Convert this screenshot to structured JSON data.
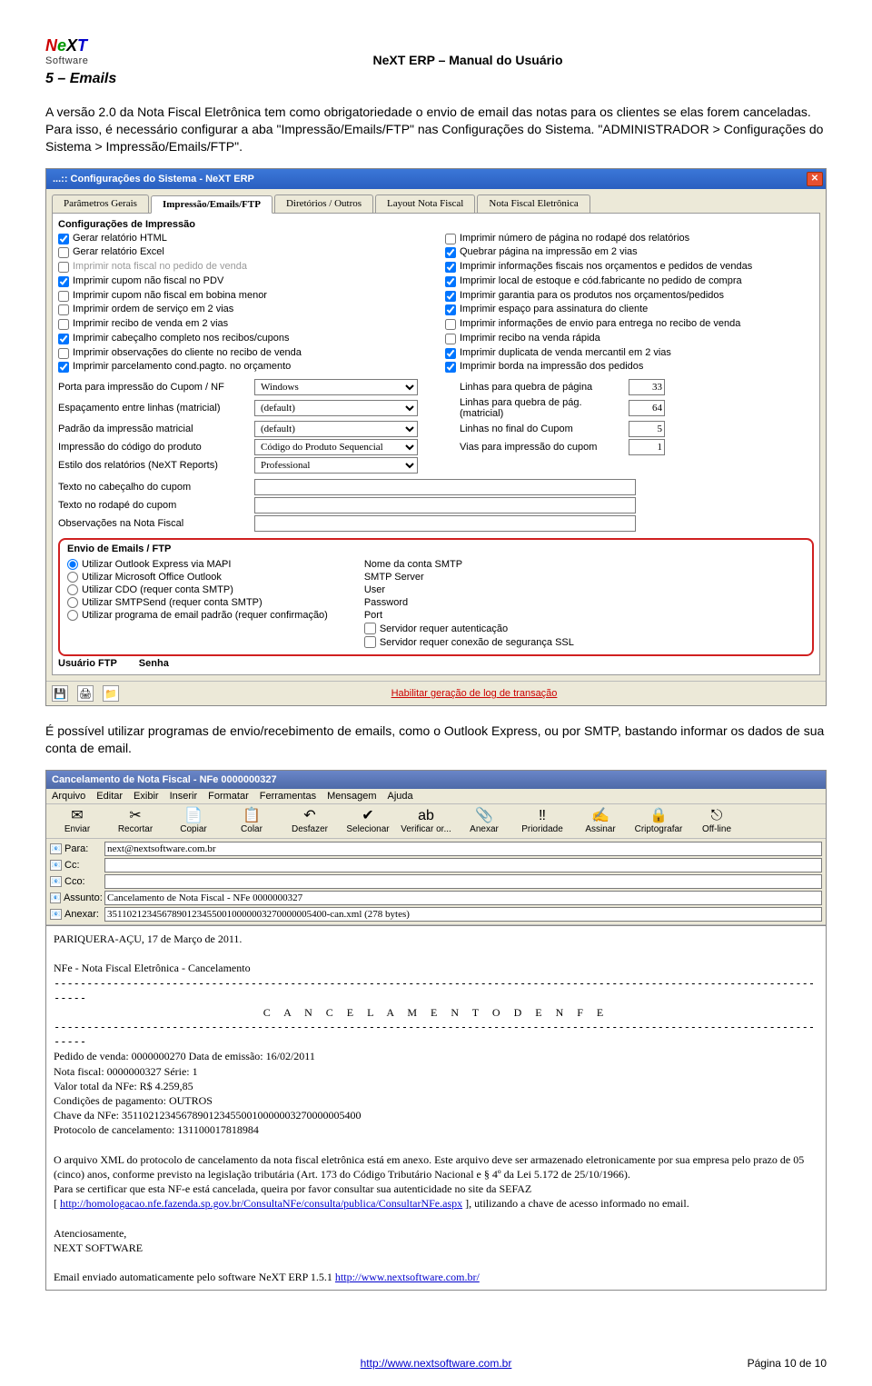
{
  "header": {
    "doc_title": "NeXT ERP – Manual do Usuário",
    "section": "5 – Emails",
    "logo_soft": "Software"
  },
  "para1": "A versão 2.0 da Nota Fiscal Eletrônica tem como obrigatoriedade o envio de email das notas para os clientes se elas forem canceladas. Para isso, é necessário configurar a aba \"Impressão/Emails/FTP\" nas Configurações do Sistema. \"ADMINISTRADOR > Configurações do Sistema > Impressão/Emails/FTP\".",
  "win1": {
    "title": "...:: Configurações do Sistema - NeXT ERP",
    "tabs": [
      "Parâmetros Gerais",
      "Impressão/Emails/FTP",
      "Diretórios / Outros",
      "Layout Nota Fiscal",
      "Nota Fiscal Eletrônica"
    ],
    "active_tab": 1,
    "grp1_title": "Configurações de Impressão",
    "left_checks": [
      {
        "c": true,
        "t": "Gerar relatório HTML"
      },
      {
        "c": false,
        "t": "Gerar relatório Excel"
      },
      {
        "c": false,
        "t": "Imprimir nota fiscal no pedido de venda",
        "dim": true
      },
      {
        "c": true,
        "t": "Imprimir cupom não fiscal no PDV"
      },
      {
        "c": false,
        "t": "Imprimir cupom não fiscal em bobina menor"
      },
      {
        "c": false,
        "t": "Imprimir ordem de serviço em 2 vias"
      },
      {
        "c": false,
        "t": "Imprimir recibo de venda em 2 vias"
      },
      {
        "c": true,
        "t": "Imprimir cabeçalho completo nos recibos/cupons"
      },
      {
        "c": false,
        "t": "Imprimir observações do cliente no recibo de venda"
      },
      {
        "c": true,
        "t": "Imprimir parcelamento cond.pagto. no orçamento"
      }
    ],
    "right_checks": [
      {
        "c": false,
        "t": "Imprimir número de página no rodapé dos relatórios"
      },
      {
        "c": true,
        "t": "Quebrar página na impressão em 2 vias"
      },
      {
        "c": true,
        "t": "Imprimir informações fiscais nos orçamentos e pedidos de vendas"
      },
      {
        "c": true,
        "t": "Imprimir local de estoque e cód.fabricante no pedido de compra"
      },
      {
        "c": true,
        "t": "Imprimir garantia para os produtos nos orçamentos/pedidos"
      },
      {
        "c": true,
        "t": "Imprimir espaço para assinatura do cliente"
      },
      {
        "c": false,
        "t": "Imprimir informações de envio para entrega no recibo de venda"
      },
      {
        "c": false,
        "t": "Imprimir recibo na venda rápida"
      },
      {
        "c": true,
        "t": "Imprimir duplicata de venda mercantil em 2 vias"
      },
      {
        "c": true,
        "t": "Imprimir borda na impressão dos pedidos"
      }
    ],
    "selrows": [
      {
        "l": "Porta para impressão do Cupom / NF",
        "v": "Windows",
        "r": "Linhas para quebra de página",
        "rv": "33"
      },
      {
        "l": "Espaçamento entre linhas (matricial)",
        "v": "(default)",
        "r": "Linhas para quebra de pág. (matricial)",
        "rv": "64"
      },
      {
        "l": "Padrão da impressão matricial",
        "v": "(default)",
        "r": "Linhas no final do Cupom",
        "rv": "5"
      },
      {
        "l": "Impressão do código do produto",
        "v": "Código do Produto Sequencial",
        "r": "Vias para impressão do cupom",
        "rv": "1"
      },
      {
        "l": "Estilo dos relatórios (NeXT Reports)",
        "v": "Professional",
        "r": "",
        "rv": ""
      }
    ],
    "txtrows": [
      "Texto no cabeçalho do cupom",
      "Texto no rodapé do cupom",
      "Observações na Nota Fiscal"
    ],
    "email_title": "Envio de Emails / FTP",
    "radios": [
      {
        "c": true,
        "t": "Utilizar Outlook Express via MAPI"
      },
      {
        "c": false,
        "t": "Utilizar Microsoft Office Outlook"
      },
      {
        "c": false,
        "t": "Utilizar CDO (requer conta SMTP)"
      },
      {
        "c": false,
        "t": "Utilizar SMTPSend (requer conta SMTP)"
      },
      {
        "c": false,
        "t": "Utilizar programa de email padrão (requer confirmação)"
      }
    ],
    "smtp_labels": [
      "Nome da conta SMTP",
      "SMTP Server",
      "User",
      "Password",
      "Port"
    ],
    "smtp_checks": [
      "Servidor requer autenticação",
      "Servidor requer conexão de segurança SSL"
    ],
    "ftp_user": "Usuário FTP",
    "ftp_pass": "Senha",
    "bottom_link": "Habilitar geração de log de transação"
  },
  "para2": "É possível utilizar programas de envio/recebimento de emails, como o Outlook Express, ou por SMTP, bastando informar os dados de sua conta de email.",
  "win2": {
    "title": "Cancelamento de Nota Fiscal - NFe 0000000327",
    "menu": [
      "Arquivo",
      "Editar",
      "Exibir",
      "Inserir",
      "Formatar",
      "Ferramentas",
      "Mensagem",
      "Ajuda"
    ],
    "toolbar": [
      {
        "g": "✉",
        "t": "Enviar"
      },
      {
        "g": "✂",
        "t": "Recortar"
      },
      {
        "g": "📄",
        "t": "Copiar"
      },
      {
        "g": "📋",
        "t": "Colar"
      },
      {
        "g": "↶",
        "t": "Desfazer"
      },
      {
        "g": "✔",
        "t": "Selecionar"
      },
      {
        "g": "ab",
        "t": "Verificar or..."
      },
      {
        "g": "📎",
        "t": "Anexar"
      },
      {
        "g": "‼",
        "t": "Prioridade"
      },
      {
        "g": "✍",
        "t": "Assinar"
      },
      {
        "g": "🔒",
        "t": "Criptografar"
      },
      {
        "g": "⎋",
        "t": "Off-line"
      }
    ],
    "fields": {
      "Para:": "next@nextsoftware.com.br",
      "Cc:": "",
      "Cco:": "",
      "Assunto:": "Cancelamento de Nota Fiscal - NFe 0000000327",
      "Anexar:": "35110212345678901234550010000003270000005400-can.xml (278 bytes)"
    },
    "body": {
      "line1": "PARIQUERA-AÇU, 17 de Março de 2011.",
      "line2": "NFe - Nota Fiscal Eletrônica - Cancelamento",
      "line3": "C A N C E L A M E N T O   D E   N F E",
      "line4": "Pedido de venda: 0000000270  Data de emissão: 16/02/2011",
      "line5": "Nota fiscal: 0000000327   Série: 1",
      "line6": "Valor total da NFe: R$ 4.259,85",
      "line7": "Condições de pagamento: OUTROS",
      "line8": "Chave da NFe: 35110212345678901234550010000003270000005400",
      "line9": "Protocolo de cancelamento: 131100017818984",
      "paraA": "O arquivo XML do protocolo de cancelamento da nota fiscal eletrônica está em anexo. Este arquivo deve ser armazenado eletronicamente por sua empresa pelo prazo de 05 (cinco) anos, conforme previsto na legislação tributária (Art. 173 do Código Tributário Nacional e § 4º da Lei 5.172 de 25/10/1966).",
      "paraB": "Para se certificar que esta NF-e está cancelada, queira por favor consultar sua autenticidade no site da SEFAZ",
      "link1": "http://homologacao.nfe.fazenda.sp.gov.br/ConsultaNFe/consulta/publica/ConsultarNFe.aspx",
      "paraB2": " ], utilizando a chave de acesso informado no email.",
      "sign1": "Atenciosamente,",
      "sign2": "NEXT SOFTWARE",
      "foot": "Email enviado automaticamente pelo software NeXT ERP 1.5.1 ",
      "link2": "http://www.nextsoftware.com.br/"
    }
  },
  "footer": {
    "url": "http://www.nextsoftware.com.br",
    "page": "Página 10 de 10"
  }
}
